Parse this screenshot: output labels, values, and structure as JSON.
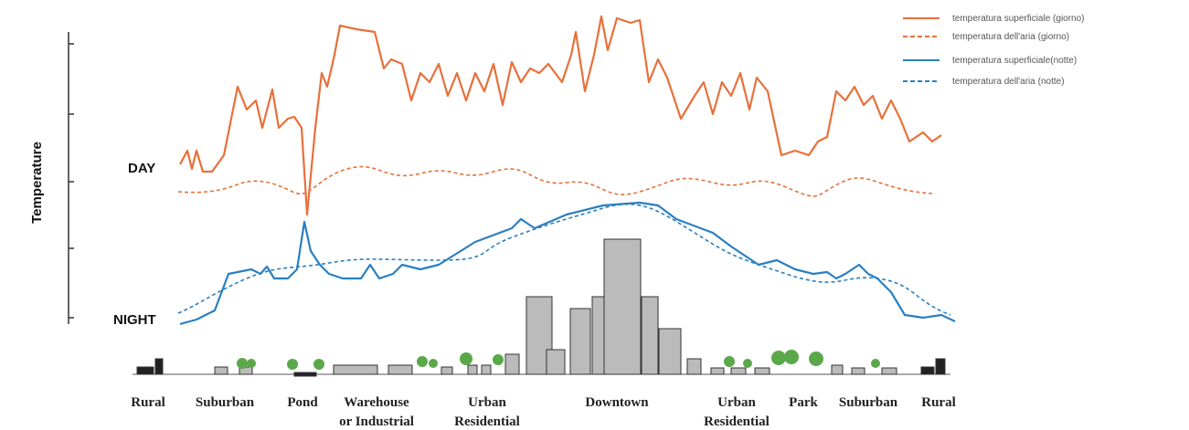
{
  "y_axis_label": "Temperature",
  "day_label": "DAY",
  "night_label": "NIGHT",
  "legend": [
    "temperatura superficiale (giorno)",
    "temperatura dell'aria (giorno)",
    "temperatura superficiale(notte)",
    "temperatura dell'aria (notte)"
  ],
  "zones": [
    [
      "Rural"
    ],
    [
      "Suburban"
    ],
    [
      "Pond"
    ],
    [
      "Warehouse",
      "or Industrial"
    ],
    [
      "Urban",
      "Residential"
    ],
    [
      "Downtown"
    ],
    [
      "Urban",
      "Residential"
    ],
    [
      "Park"
    ],
    [
      "Suburban"
    ],
    [
      "Rural"
    ]
  ]
}
